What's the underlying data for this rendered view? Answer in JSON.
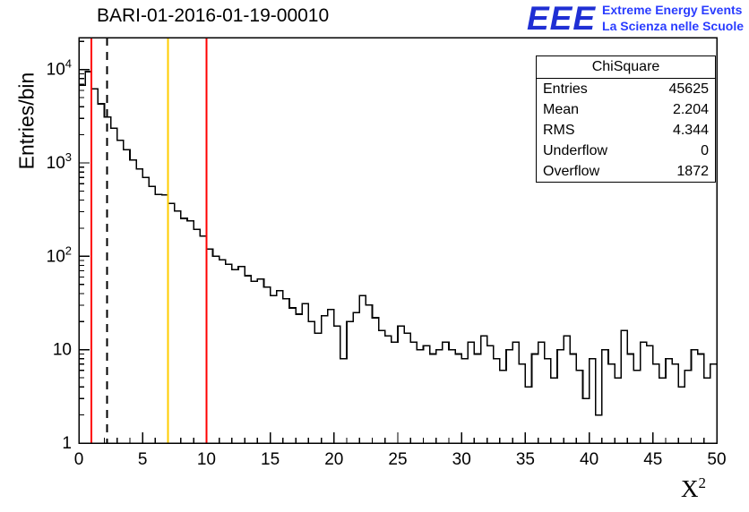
{
  "header": {
    "title": "BARI-01-2016-01-19-00010"
  },
  "logo": {
    "eee": "EEE",
    "line1": "Extreme Energy Events",
    "line2": "La Scienza nelle Scuole",
    "color": "#1f2fd4"
  },
  "axes": {
    "ylabel": "Entries/bin",
    "xlabel_base": "X",
    "xlabel_sup": "2"
  },
  "stats": {
    "title": "ChiSquare",
    "rows": [
      {
        "label": "Entries",
        "value": "45625"
      },
      {
        "label": "Mean",
        "value": "2.204"
      },
      {
        "label": "RMS",
        "value": "4.344"
      },
      {
        "label": "Underflow",
        "value": "0"
      },
      {
        "label": "Overflow",
        "value": "1872"
      }
    ]
  },
  "chart_data": {
    "type": "bar",
    "subtype": "step-histogram",
    "title": "BARI-01-2016-01-19-00010",
    "xlabel": "X^2",
    "ylabel": "Entries/bin",
    "xlim": [
      0,
      50
    ],
    "ylim": [
      1,
      22000
    ],
    "yscale": "log",
    "grid": false,
    "bin_width": 0.5,
    "line_color": "#000000",
    "values": [
      6800,
      9500,
      6200,
      4300,
      3100,
      2350,
      1750,
      1380,
      1080,
      860,
      700,
      560,
      460,
      455,
      370,
      305,
      255,
      240,
      195,
      165,
      120,
      100,
      92,
      82,
      72,
      78,
      62,
      54,
      57,
      47,
      38,
      43,
      35,
      28,
      24,
      31,
      20,
      15,
      23,
      27,
      18,
      8,
      20,
      25,
      38,
      30,
      22,
      16,
      14,
      12,
      18,
      15,
      12,
      10,
      11,
      9,
      10,
      12,
      10,
      9,
      8,
      12,
      9,
      14,
      11,
      8,
      6,
      10,
      12,
      7,
      4,
      9,
      12,
      8,
      5,
      10,
      14,
      9,
      6,
      3,
      8,
      2,
      10,
      7,
      5,
      16,
      9,
      6,
      12,
      11,
      7,
      5,
      8,
      7,
      4,
      6,
      10,
      9,
      5,
      7
    ],
    "x_major_tick_step": 5,
    "x_minor_tick_step": 1,
    "x_tick_labels": [
      "0",
      "5",
      "10",
      "15",
      "20",
      "25",
      "30",
      "35",
      "40",
      "45",
      "50"
    ],
    "y_tick_labels": [
      "1",
      "10",
      "10^2",
      "10^3",
      "10^4"
    ],
    "markers": [
      {
        "x": 1.0,
        "color": "#ff0000",
        "style": "solid"
      },
      {
        "x": 2.204,
        "color": "#000000",
        "style": "dashed"
      },
      {
        "x": 7.0,
        "color": "#ffcc00",
        "style": "solid"
      },
      {
        "x": 10.0,
        "color": "#ff0000",
        "style": "solid"
      }
    ]
  }
}
